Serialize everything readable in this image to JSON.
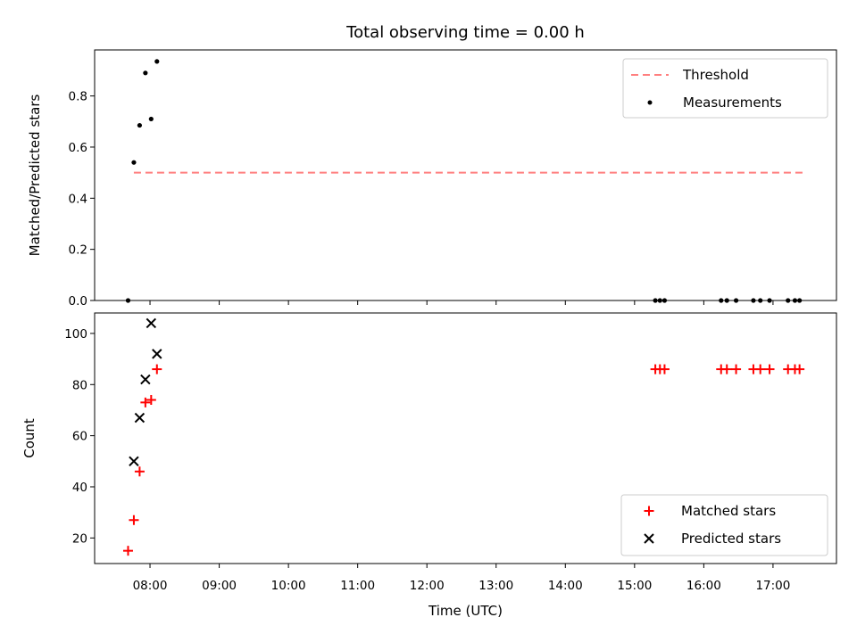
{
  "chart_data": [
    {
      "type": "scatter",
      "title": "Total observing time = 0.00 h",
      "ylabel": "Matched/Predicted stars",
      "ylim": [
        0,
        0.98
      ],
      "yticks": [
        0.0,
        0.2,
        0.4,
        0.6,
        0.8
      ],
      "ytick_labels": [
        "0.0",
        "0.2",
        "0.4",
        "0.6",
        "0.8"
      ],
      "legend_position": "upper right",
      "threshold": {
        "name": "Threshold",
        "value": 0.5,
        "x_range": [
          "07:46",
          "17:28"
        ],
        "color": "#ff7f7f",
        "style": "dashed"
      },
      "series": [
        {
          "name": "Measurements",
          "marker": "dot",
          "color": "#000000",
          "points": [
            {
              "x": "07:41",
              "y": 0.0
            },
            {
              "x": "07:46",
              "y": 0.54
            },
            {
              "x": "07:51",
              "y": 0.685
            },
            {
              "x": "07:56",
              "y": 0.89
            },
            {
              "x": "08:01",
              "y": 0.71
            },
            {
              "x": "08:06",
              "y": 0.935
            },
            {
              "x": "15:18",
              "y": 0.0
            },
            {
              "x": "15:22",
              "y": 0.0
            },
            {
              "x": "15:26",
              "y": 0.0
            },
            {
              "x": "16:15",
              "y": 0.0
            },
            {
              "x": "16:20",
              "y": 0.0
            },
            {
              "x": "16:28",
              "y": 0.0
            },
            {
              "x": "16:43",
              "y": 0.0
            },
            {
              "x": "16:49",
              "y": 0.0
            },
            {
              "x": "16:57",
              "y": 0.0
            },
            {
              "x": "17:13",
              "y": 0.0
            },
            {
              "x": "17:19",
              "y": 0.0
            },
            {
              "x": "17:23",
              "y": 0.0
            }
          ]
        }
      ]
    },
    {
      "type": "scatter",
      "xlabel": "Time (UTC)",
      "ylabel": "Count",
      "ylim": [
        10,
        108
      ],
      "yticks": [
        20,
        40,
        60,
        80,
        100
      ],
      "ytick_labels": [
        "20",
        "40",
        "60",
        "80",
        "100"
      ],
      "xlim": [
        "07:12",
        "17:55"
      ],
      "xticks": [
        "08:00",
        "09:00",
        "10:00",
        "11:00",
        "12:00",
        "13:00",
        "14:00",
        "15:00",
        "16:00",
        "17:00"
      ],
      "xtick_labels": [
        "08:00",
        "09:00",
        "10:00",
        "11:00",
        "12:00",
        "13:00",
        "14:00",
        "15:00",
        "16:00",
        "17:00"
      ],
      "legend_position": "lower right",
      "series": [
        {
          "name": "Matched stars",
          "marker": "plus",
          "color": "#ff0000",
          "points": [
            {
              "x": "07:41",
              "y": 15
            },
            {
              "x": "07:46",
              "y": 27
            },
            {
              "x": "07:51",
              "y": 46
            },
            {
              "x": "07:56",
              "y": 73
            },
            {
              "x": "08:01",
              "y": 74
            },
            {
              "x": "08:06",
              "y": 86
            },
            {
              "x": "15:18",
              "y": 86
            },
            {
              "x": "15:22",
              "y": 86
            },
            {
              "x": "15:26",
              "y": 86
            },
            {
              "x": "16:15",
              "y": 86
            },
            {
              "x": "16:20",
              "y": 86
            },
            {
              "x": "16:28",
              "y": 86
            },
            {
              "x": "16:43",
              "y": 86
            },
            {
              "x": "16:49",
              "y": 86
            },
            {
              "x": "16:57",
              "y": 86
            },
            {
              "x": "17:13",
              "y": 86
            },
            {
              "x": "17:19",
              "y": 86
            },
            {
              "x": "17:23",
              "y": 86
            }
          ]
        },
        {
          "name": "Predicted stars",
          "marker": "x",
          "color": "#000000",
          "points": [
            {
              "x": "07:46",
              "y": 50
            },
            {
              "x": "07:51",
              "y": 67
            },
            {
              "x": "07:56",
              "y": 82
            },
            {
              "x": "08:01",
              "y": 104
            },
            {
              "x": "08:06",
              "y": 92
            }
          ]
        }
      ]
    }
  ]
}
